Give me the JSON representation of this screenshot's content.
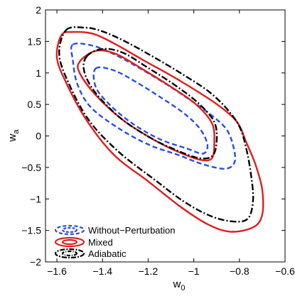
{
  "chart_data": {
    "type": "line",
    "xlabel": "w",
    "xlabel_subscript": "0",
    "ylabel": "w",
    "ylabel_subscript": "a",
    "xlim": [
      -1.65,
      -0.6
    ],
    "ylim": [
      -2,
      2
    ],
    "x_ticks": [
      -1.6,
      -1.4,
      -1.2,
      -1.0,
      -0.8,
      -0.6
    ],
    "y_ticks": [
      -2,
      -1.5,
      -1,
      -0.5,
      0,
      0.5,
      1,
      1.5,
      2
    ],
    "x_tick_labels": [
      "−1.6",
      "−1.4",
      "−1.2",
      "−1",
      "−0.8",
      "−0.6"
    ],
    "y_tick_labels": [
      "−2",
      "−1.5",
      "−1",
      "−0.5",
      "0",
      "0.5",
      "1",
      "1.5",
      "2"
    ],
    "grid": false,
    "legend_position": "bottom-left",
    "series": [
      {
        "name": "Without−Perturbation",
        "color": "#2a4de0",
        "dash": "dashed",
        "contours": [
          [
            [
              -1.53,
              1.45
            ],
            [
              -1.44,
              1.43
            ],
            [
              -1.34,
              1.28
            ],
            [
              -1.24,
              1.08
            ],
            [
              -1.12,
              0.82
            ],
            [
              -1.02,
              0.58
            ],
            [
              -0.93,
              0.35
            ],
            [
              -0.86,
              0.12
            ],
            [
              -0.83,
              -0.12
            ],
            [
              -0.82,
              -0.4
            ],
            [
              -0.86,
              -0.52
            ],
            [
              -0.96,
              -0.45
            ],
            [
              -1.07,
              -0.3
            ],
            [
              -1.19,
              -0.15
            ],
            [
              -1.32,
              0.1
            ],
            [
              -1.45,
              0.45
            ],
            [
              -1.51,
              0.82
            ],
            [
              -1.53,
              1.2
            ],
            [
              -1.53,
              1.45
            ]
          ],
          [
            [
              -1.43,
              1.07
            ],
            [
              -1.35,
              1.04
            ],
            [
              -1.25,
              0.85
            ],
            [
              -1.14,
              0.6
            ],
            [
              -1.04,
              0.35
            ],
            [
              -0.97,
              0.1
            ],
            [
              -0.94,
              -0.15
            ],
            [
              -0.96,
              -0.28
            ],
            [
              -1.03,
              -0.2
            ],
            [
              -1.15,
              -0.05
            ],
            [
              -1.27,
              0.2
            ],
            [
              -1.37,
              0.5
            ],
            [
              -1.43,
              0.78
            ],
            [
              -1.43,
              1.07
            ]
          ]
        ]
      },
      {
        "name": "Mixed",
        "color": "#e01e1e",
        "dash": "solid",
        "contours": [
          [
            [
              -1.58,
              1.6
            ],
            [
              -1.53,
              1.65
            ],
            [
              -1.44,
              1.62
            ],
            [
              -1.34,
              1.45
            ],
            [
              -1.22,
              1.2
            ],
            [
              -1.1,
              0.96
            ],
            [
              -0.99,
              0.72
            ],
            [
              -0.89,
              0.48
            ],
            [
              -0.81,
              0.22
            ],
            [
              -0.77,
              -0.1
            ],
            [
              -0.73,
              -0.45
            ],
            [
              -0.7,
              -0.85
            ],
            [
              -0.7,
              -1.25
            ],
            [
              -0.74,
              -1.45
            ],
            [
              -0.84,
              -1.52
            ],
            [
              -0.94,
              -1.4
            ],
            [
              -1.06,
              -1.12
            ],
            [
              -1.2,
              -0.72
            ],
            [
              -1.35,
              -0.3
            ],
            [
              -1.47,
              0.25
            ],
            [
              -1.56,
              0.85
            ],
            [
              -1.6,
              1.25
            ],
            [
              -1.58,
              1.6
            ]
          ],
          [
            [
              -1.5,
              1.18
            ],
            [
              -1.43,
              1.35
            ],
            [
              -1.34,
              1.3
            ],
            [
              -1.22,
              1.05
            ],
            [
              -1.1,
              0.78
            ],
            [
              -0.99,
              0.5
            ],
            [
              -0.92,
              0.2
            ],
            [
              -0.91,
              -0.1
            ],
            [
              -0.92,
              -0.35
            ],
            [
              -0.97,
              -0.38
            ],
            [
              -1.07,
              -0.25
            ],
            [
              -1.18,
              -0.05
            ],
            [
              -1.31,
              0.25
            ],
            [
              -1.43,
              0.65
            ],
            [
              -1.5,
              1.0
            ],
            [
              -1.5,
              1.18
            ]
          ]
        ]
      },
      {
        "name": "Adiabatic",
        "color": "#000000",
        "dash": "dashdot",
        "contours": [
          [
            [
              -1.56,
              1.68
            ],
            [
              -1.48,
              1.72
            ],
            [
              -1.4,
              1.66
            ],
            [
              -1.29,
              1.48
            ],
            [
              -1.17,
              1.24
            ],
            [
              -1.05,
              0.98
            ],
            [
              -0.94,
              0.72
            ],
            [
              -0.86,
              0.45
            ],
            [
              -0.8,
              0.15
            ],
            [
              -0.77,
              -0.2
            ],
            [
              -0.75,
              -0.6
            ],
            [
              -0.74,
              -1.0
            ],
            [
              -0.76,
              -1.3
            ],
            [
              -0.82,
              -1.36
            ],
            [
              -0.92,
              -1.28
            ],
            [
              -1.04,
              -1.05
            ],
            [
              -1.17,
              -0.7
            ],
            [
              -1.33,
              -0.25
            ],
            [
              -1.46,
              0.25
            ],
            [
              -1.55,
              0.85
            ],
            [
              -1.59,
              1.3
            ],
            [
              -1.56,
              1.68
            ]
          ],
          [
            [
              -1.47,
              1.26
            ],
            [
              -1.4,
              1.38
            ],
            [
              -1.31,
              1.32
            ],
            [
              -1.2,
              1.08
            ],
            [
              -1.08,
              0.8
            ],
            [
              -0.98,
              0.52
            ],
            [
              -0.91,
              0.22
            ],
            [
              -0.9,
              -0.1
            ],
            [
              -0.92,
              -0.32
            ],
            [
              -0.98,
              -0.35
            ],
            [
              -1.08,
              -0.22
            ],
            [
              -1.19,
              -0.03
            ],
            [
              -1.32,
              0.28
            ],
            [
              -1.43,
              0.68
            ],
            [
              -1.48,
              1.02
            ],
            [
              -1.47,
              1.26
            ]
          ]
        ]
      }
    ]
  }
}
